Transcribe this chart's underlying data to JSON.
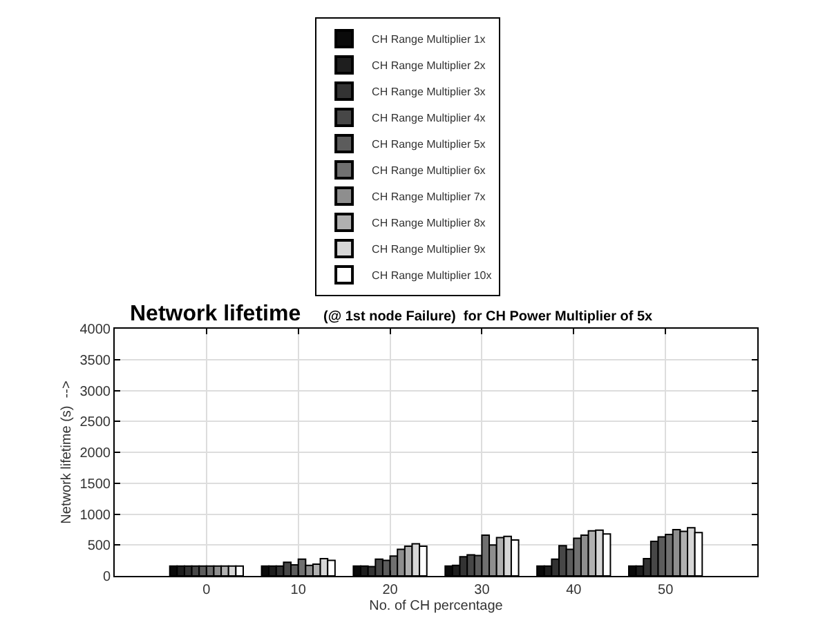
{
  "chart_data": {
    "type": "bar",
    "title": "Network lifetime",
    "subtitle": "(@ 1st node Failure)  for CH Power Multiplier of 5x",
    "xlabel": "No. of CH percentage",
    "ylabel": "Network lifetime (s)  -->",
    "x": [
      0,
      10,
      20,
      30,
      40,
      50
    ],
    "xlim": [
      -10,
      60
    ],
    "xticks": [
      0,
      10,
      20,
      30,
      40,
      50
    ],
    "ylim": [
      0,
      4000
    ],
    "yticks": [
      0,
      500,
      1000,
      1500,
      2000,
      2500,
      3000,
      3500,
      4000
    ],
    "grid": true,
    "legend": "top",
    "series": [
      {
        "name": "CH Range Multiplier 1x",
        "color": "#0a0a0a",
        "values": [
          160,
          160,
          160,
          160,
          160,
          160
        ]
      },
      {
        "name": "CH Range Multiplier 2x",
        "color": "#1e1e1e",
        "values": [
          160,
          160,
          160,
          170,
          160,
          160
        ]
      },
      {
        "name": "CH Range Multiplier 3x",
        "color": "#333333",
        "values": [
          160,
          160,
          150,
          310,
          270,
          280
        ]
      },
      {
        "name": "CH Range Multiplier 4x",
        "color": "#474747",
        "values": [
          160,
          220,
          270,
          340,
          490,
          560
        ]
      },
      {
        "name": "CH Range Multiplier 5x",
        "color": "#5c5c5c",
        "values": [
          160,
          180,
          250,
          330,
          430,
          630
        ]
      },
      {
        "name": "CH Range Multiplier 6x",
        "color": "#707070",
        "values": [
          160,
          270,
          320,
          660,
          610,
          670
        ]
      },
      {
        "name": "CH Range Multiplier 7x",
        "color": "#8e8e8e",
        "values": [
          160,
          170,
          430,
          500,
          660,
          750
        ]
      },
      {
        "name": "CH Range Multiplier 8x",
        "color": "#b0b0b0",
        "values": [
          160,
          190,
          480,
          620,
          730,
          720
        ]
      },
      {
        "name": "CH Range Multiplier 9x",
        "color": "#d6d6d6",
        "values": [
          160,
          280,
          520,
          640,
          740,
          780
        ]
      },
      {
        "name": "CH Range Multiplier 10x",
        "color": "#ffffff",
        "values": [
          160,
          250,
          480,
          580,
          680,
          700
        ]
      }
    ]
  }
}
